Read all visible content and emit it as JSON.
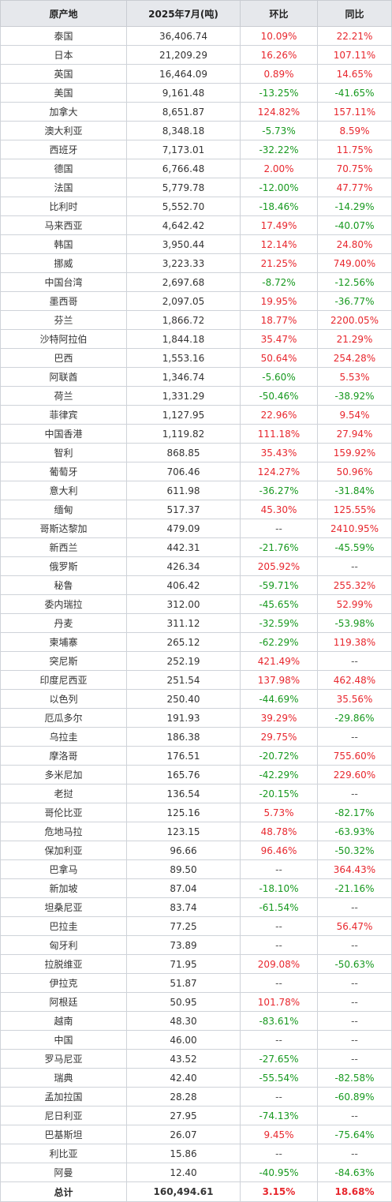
{
  "header": {
    "origin": "原产地",
    "month": "2025年7月(吨)",
    "mom": "环比",
    "yoy": "同比"
  },
  "colors": {
    "up": "#e8272e",
    "down": "#17991f",
    "header_bg": "#e6e8ec"
  },
  "rows": [
    {
      "origin": "泰国",
      "volume": "36,406.74",
      "mom": "10.09%",
      "yoy": "22.21%"
    },
    {
      "origin": "日本",
      "volume": "21,209.29",
      "mom": "16.26%",
      "yoy": "107.11%"
    },
    {
      "origin": "英国",
      "volume": "16,464.09",
      "mom": "0.89%",
      "yoy": "14.65%"
    },
    {
      "origin": "美国",
      "volume": "9,161.48",
      "mom": "-13.25%",
      "yoy": "-41.65%"
    },
    {
      "origin": "加拿大",
      "volume": "8,651.87",
      "mom": "124.82%",
      "yoy": "157.11%"
    },
    {
      "origin": "澳大利亚",
      "volume": "8,348.18",
      "mom": "-5.73%",
      "yoy": "8.59%"
    },
    {
      "origin": "西班牙",
      "volume": "7,173.01",
      "mom": "-32.22%",
      "yoy": "11.75%"
    },
    {
      "origin": "德国",
      "volume": "6,766.48",
      "mom": "2.00%",
      "yoy": "70.75%"
    },
    {
      "origin": "法国",
      "volume": "5,779.78",
      "mom": "-12.00%",
      "yoy": "47.77%"
    },
    {
      "origin": "比利时",
      "volume": "5,552.70",
      "mom": "-18.46%",
      "yoy": "-14.29%"
    },
    {
      "origin": "马来西亚",
      "volume": "4,642.42",
      "mom": "17.49%",
      "yoy": "-40.07%"
    },
    {
      "origin": "韩国",
      "volume": "3,950.44",
      "mom": "12.14%",
      "yoy": "24.80%"
    },
    {
      "origin": "挪威",
      "volume": "3,223.33",
      "mom": "21.25%",
      "yoy": "749.00%"
    },
    {
      "origin": "中国台湾",
      "volume": "2,697.68",
      "mom": "-8.72%",
      "yoy": "-12.56%"
    },
    {
      "origin": "墨西哥",
      "volume": "2,097.05",
      "mom": "19.95%",
      "yoy": "-36.77%"
    },
    {
      "origin": "芬兰",
      "volume": "1,866.72",
      "mom": "18.77%",
      "yoy": "2200.05%"
    },
    {
      "origin": "沙特阿拉伯",
      "volume": "1,844.18",
      "mom": "35.47%",
      "yoy": "21.29%"
    },
    {
      "origin": "巴西",
      "volume": "1,553.16",
      "mom": "50.64%",
      "yoy": "254.28%"
    },
    {
      "origin": "阿联酋",
      "volume": "1,346.74",
      "mom": "-5.60%",
      "yoy": "5.53%"
    },
    {
      "origin": "荷兰",
      "volume": "1,331.29",
      "mom": "-50.46%",
      "yoy": "-38.92%"
    },
    {
      "origin": "菲律宾",
      "volume": "1,127.95",
      "mom": "22.96%",
      "yoy": "9.54%"
    },
    {
      "origin": "中国香港",
      "volume": "1,119.82",
      "mom": "111.18%",
      "yoy": "27.94%"
    },
    {
      "origin": "智利",
      "volume": "868.85",
      "mom": "35.43%",
      "yoy": "159.92%"
    },
    {
      "origin": "葡萄牙",
      "volume": "706.46",
      "mom": "124.27%",
      "yoy": "50.96%"
    },
    {
      "origin": "意大利",
      "volume": "611.98",
      "mom": "-36.27%",
      "yoy": "-31.84%"
    },
    {
      "origin": "缅甸",
      "volume": "517.37",
      "mom": "45.30%",
      "yoy": "125.55%"
    },
    {
      "origin": "哥斯达黎加",
      "volume": "479.09",
      "mom": "--",
      "yoy": "2410.95%"
    },
    {
      "origin": "新西兰",
      "volume": "442.31",
      "mom": "-21.76%",
      "yoy": "-45.59%"
    },
    {
      "origin": "俄罗斯",
      "volume": "426.34",
      "mom": "205.92%",
      "yoy": "--"
    },
    {
      "origin": "秘鲁",
      "volume": "406.42",
      "mom": "-59.71%",
      "yoy": "255.32%"
    },
    {
      "origin": "委内瑞拉",
      "volume": "312.00",
      "mom": "-45.65%",
      "yoy": "52.99%"
    },
    {
      "origin": "丹麦",
      "volume": "311.12",
      "mom": "-32.59%",
      "yoy": "-53.98%"
    },
    {
      "origin": "柬埔寨",
      "volume": "265.12",
      "mom": "-62.29%",
      "yoy": "119.38%"
    },
    {
      "origin": "突尼斯",
      "volume": "252.19",
      "mom": "421.49%",
      "yoy": "--"
    },
    {
      "origin": "印度尼西亚",
      "volume": "251.54",
      "mom": "137.98%",
      "yoy": "462.48%"
    },
    {
      "origin": "以色列",
      "volume": "250.40",
      "mom": "-44.69%",
      "yoy": "35.56%"
    },
    {
      "origin": "厄瓜多尔",
      "volume": "191.93",
      "mom": "39.29%",
      "yoy": "-29.86%"
    },
    {
      "origin": "乌拉圭",
      "volume": "186.38",
      "mom": "29.75%",
      "yoy": "--"
    },
    {
      "origin": "摩洛哥",
      "volume": "176.51",
      "mom": "-20.72%",
      "yoy": "755.60%"
    },
    {
      "origin": "多米尼加",
      "volume": "165.76",
      "mom": "-42.29%",
      "yoy": "229.60%"
    },
    {
      "origin": "老挝",
      "volume": "136.54",
      "mom": "-20.15%",
      "yoy": "--"
    },
    {
      "origin": "哥伦比亚",
      "volume": "125.16",
      "mom": "5.73%",
      "yoy": "-82.17%"
    },
    {
      "origin": "危地马拉",
      "volume": "123.15",
      "mom": "48.78%",
      "yoy": "-63.93%"
    },
    {
      "origin": "保加利亚",
      "volume": "96.66",
      "mom": "96.46%",
      "yoy": "-50.32%"
    },
    {
      "origin": "巴拿马",
      "volume": "89.50",
      "mom": "--",
      "yoy": "364.43%"
    },
    {
      "origin": "新加坡",
      "volume": "87.04",
      "mom": "-18.10%",
      "yoy": "-21.16%"
    },
    {
      "origin": "坦桑尼亚",
      "volume": "83.74",
      "mom": "-61.54%",
      "yoy": "--"
    },
    {
      "origin": "巴拉圭",
      "volume": "77.25",
      "mom": "--",
      "yoy": "56.47%"
    },
    {
      "origin": "匈牙利",
      "volume": "73.89",
      "mom": "--",
      "yoy": "--"
    },
    {
      "origin": "拉脱维亚",
      "volume": "71.95",
      "mom": "209.08%",
      "yoy": "-50.63%"
    },
    {
      "origin": "伊拉克",
      "volume": "51.87",
      "mom": "--",
      "yoy": "--"
    },
    {
      "origin": "阿根廷",
      "volume": "50.95",
      "mom": "101.78%",
      "yoy": "--"
    },
    {
      "origin": "越南",
      "volume": "48.30",
      "mom": "-83.61%",
      "yoy": "--"
    },
    {
      "origin": "中国",
      "volume": "46.00",
      "mom": "--",
      "yoy": "--"
    },
    {
      "origin": "罗马尼亚",
      "volume": "43.52",
      "mom": "-27.65%",
      "yoy": "--"
    },
    {
      "origin": "瑞典",
      "volume": "42.40",
      "mom": "-55.54%",
      "yoy": "-82.58%"
    },
    {
      "origin": "孟加拉国",
      "volume": "28.28",
      "mom": "--",
      "yoy": "-60.89%"
    },
    {
      "origin": "尼日利亚",
      "volume": "27.95",
      "mom": "-74.13%",
      "yoy": "--"
    },
    {
      "origin": "巴基斯坦",
      "volume": "26.07",
      "mom": "9.45%",
      "yoy": "-75.64%"
    },
    {
      "origin": "利比亚",
      "volume": "15.86",
      "mom": "--",
      "yoy": "--"
    },
    {
      "origin": "阿曼",
      "volume": "12.40",
      "mom": "-40.95%",
      "yoy": "-84.63%"
    }
  ],
  "total": {
    "origin": "总计",
    "volume": "160,494.61",
    "mom": "3.15%",
    "yoy": "18.68%"
  }
}
